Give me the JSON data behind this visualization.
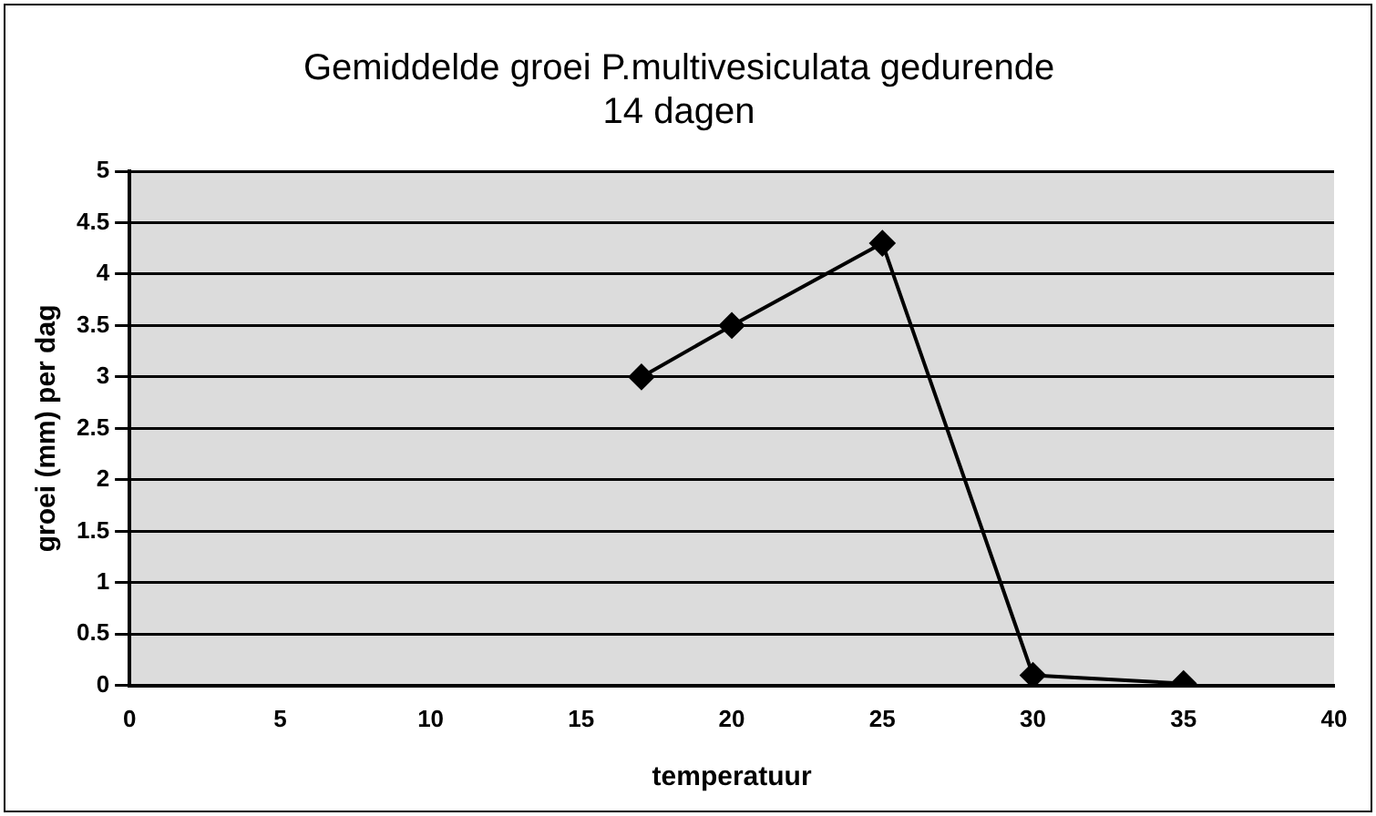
{
  "chart_data": {
    "type": "line",
    "title": "Gemiddelde groei P.multivesiculata gedurende\n14 dagen",
    "xlabel": "temperatuur",
    "ylabel": "groei (mm) per dag",
    "x": [
      17,
      20,
      25,
      30,
      35
    ],
    "series": [
      {
        "color": "#000000",
        "values": [
          3,
          3.5,
          4.3,
          0.1,
          0.02
        ]
      }
    ],
    "xlim": [
      0,
      40
    ],
    "xticks": [
      0,
      5,
      10,
      15,
      20,
      25,
      30,
      35,
      40
    ],
    "ylim": [
      0,
      5
    ],
    "yticks": [
      0,
      0.5,
      1,
      1.5,
      2,
      2.5,
      3,
      3.5,
      4,
      4.5,
      5
    ],
    "grid": "y",
    "marker": "diamond",
    "line_style": "solid",
    "legend": false
  }
}
